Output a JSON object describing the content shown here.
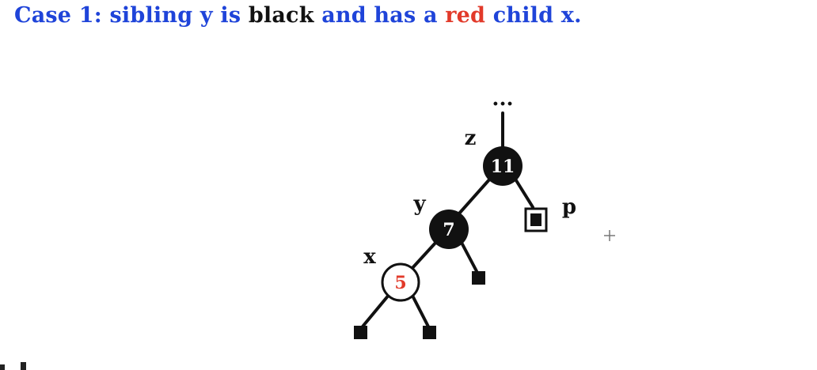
{
  "title": {
    "part1": "Case 1: sibling y is ",
    "part2": "black",
    "part3": " and has a ",
    "part4": "red",
    "part5": " child x.",
    "colors": {
      "blue": "#1f44d9",
      "black": "#111111",
      "red": "#e23a2a"
    }
  },
  "tree": {
    "ellipsis": "...",
    "labels": {
      "z": "z",
      "y": "y",
      "x": "x",
      "p": "p"
    },
    "nodes": {
      "n11": {
        "value": "11",
        "color": "black"
      },
      "n7": {
        "value": "7",
        "color": "black"
      },
      "n5": {
        "value": "5",
        "color": "red"
      }
    },
    "leaves": [
      "nil",
      "nil",
      "nil"
    ],
    "double_black_leaf": "p"
  },
  "cursor": "+"
}
